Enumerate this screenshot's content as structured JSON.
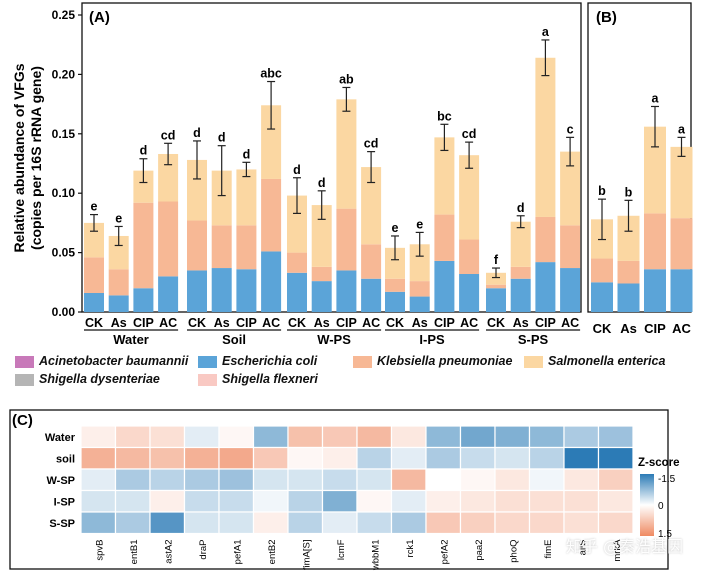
{
  "colors": {
    "acinetobacter": "#c879b9",
    "ecoli": "#5ba4d8",
    "klebsiella": "#f7b895",
    "salmonella": "#fbd7a2",
    "shigella_dys": "#b5b5b5",
    "shigella_flex": "#f9c9c3",
    "axis": "#111111",
    "heat_pos": "#2c7bb6",
    "heat_neg": "#ef8a62",
    "heat_mid": "#ffffff"
  },
  "chart_data": [
    {
      "id": "A",
      "panel_label": "(A)",
      "type": "bar",
      "stacked": true,
      "ylabel": "Relative abundance of VFGs",
      "ylabel2": "(copies per 16S rRNA gene)",
      "ylim": [
        0,
        0.25
      ],
      "yticks": [
        "0.00",
        "0.05",
        "0.10",
        "0.15",
        "0.20",
        "0.25"
      ],
      "groups": [
        {
          "name": "Water",
          "bars": [
            {
              "label": "CK",
              "letter": "e",
              "error": 0.007,
              "ecoli": 0.016,
              "klebsiella": 0.03,
              "salmonella": 0.029
            },
            {
              "label": "As",
              "letter": "e",
              "error": 0.008,
              "ecoli": 0.014,
              "klebsiella": 0.022,
              "salmonella": 0.028
            },
            {
              "label": "CIP",
              "letter": "d",
              "error": 0.01,
              "ecoli": 0.02,
              "klebsiella": 0.072,
              "salmonella": 0.027
            },
            {
              "label": "AC",
              "letter": "cd",
              "error": 0.009,
              "ecoli": 0.03,
              "klebsiella": 0.063,
              "salmonella": 0.04
            }
          ]
        },
        {
          "name": "Soil",
          "bars": [
            {
              "label": "CK",
              "letter": "d",
              "error": 0.016,
              "ecoli": 0.035,
              "klebsiella": 0.042,
              "salmonella": 0.051
            },
            {
              "label": "As",
              "letter": "d",
              "error": 0.021,
              "ecoli": 0.037,
              "klebsiella": 0.036,
              "salmonella": 0.046
            },
            {
              "label": "CIP",
              "letter": "d",
              "error": 0.006,
              "ecoli": 0.036,
              "klebsiella": 0.037,
              "salmonella": 0.047
            },
            {
              "label": "AC",
              "letter": "abc",
              "error": 0.02,
              "ecoli": 0.051,
              "klebsiella": 0.061,
              "salmonella": 0.062
            }
          ]
        },
        {
          "name": "W-PS",
          "bars": [
            {
              "label": "CK",
              "letter": "d",
              "error": 0.015,
              "ecoli": 0.033,
              "klebsiella": 0.017,
              "salmonella": 0.048
            },
            {
              "label": "As",
              "letter": "d",
              "error": 0.012,
              "ecoli": 0.026,
              "klebsiella": 0.012,
              "salmonella": 0.052
            },
            {
              "label": "CIP",
              "letter": "ab",
              "error": 0.01,
              "ecoli": 0.035,
              "klebsiella": 0.052,
              "salmonella": 0.092
            },
            {
              "label": "AC",
              "letter": "cd",
              "error": 0.013,
              "ecoli": 0.028,
              "klebsiella": 0.029,
              "salmonella": 0.065
            }
          ]
        },
        {
          "name": "I-PS",
          "bars": [
            {
              "label": "CK",
              "letter": "e",
              "error": 0.01,
              "ecoli": 0.017,
              "klebsiella": 0.011,
              "salmonella": 0.026
            },
            {
              "label": "As",
              "letter": "e",
              "error": 0.01,
              "ecoli": 0.013,
              "klebsiella": 0.013,
              "salmonella": 0.031
            },
            {
              "label": "CIP",
              "letter": "bc",
              "error": 0.011,
              "ecoli": 0.043,
              "klebsiella": 0.039,
              "salmonella": 0.065
            },
            {
              "label": "AC",
              "letter": "cd",
              "error": 0.011,
              "ecoli": 0.032,
              "klebsiella": 0.029,
              "salmonella": 0.071
            }
          ]
        },
        {
          "name": "S-PS",
          "bars": [
            {
              "label": "CK",
              "letter": "f",
              "error": 0.004,
              "ecoli": 0.02,
              "klebsiella": 0.003,
              "salmonella": 0.01
            },
            {
              "label": "As",
              "letter": "d",
              "error": 0.005,
              "ecoli": 0.028,
              "klebsiella": 0.01,
              "salmonella": 0.038
            },
            {
              "label": "CIP",
              "letter": "a",
              "error": 0.015,
              "ecoli": 0.042,
              "klebsiella": 0.038,
              "salmonella": 0.134
            },
            {
              "label": "AC",
              "letter": "c",
              "error": 0.012,
              "ecoli": 0.037,
              "klebsiella": 0.036,
              "salmonella": 0.062
            }
          ]
        }
      ]
    },
    {
      "id": "B",
      "panel_label": "(B)",
      "type": "bar",
      "stacked": true,
      "ylim": [
        0,
        0.25
      ],
      "bars": [
        {
          "label": "CK",
          "letter": "b",
          "error": 0.017,
          "ecoli": 0.025,
          "klebsiella": 0.02,
          "salmonella": 0.033
        },
        {
          "label": "As",
          "letter": "b",
          "error": 0.013,
          "ecoli": 0.024,
          "klebsiella": 0.019,
          "salmonella": 0.038
        },
        {
          "label": "CIP",
          "letter": "a",
          "error": 0.017,
          "ecoli": 0.036,
          "klebsiella": 0.047,
          "salmonella": 0.073
        },
        {
          "label": "AC",
          "letter": "a",
          "error": 0.008,
          "ecoli": 0.036,
          "klebsiella": 0.043,
          "salmonella": 0.06
        }
      ]
    },
    {
      "id": "C",
      "panel_label": "(C)",
      "type": "heatmap",
      "rows": [
        "Water",
        "soil",
        "W-SP",
        "I-SP",
        "S-SP"
      ],
      "columns": [
        "spvB",
        "entB1",
        "astA2",
        "draP",
        "pefA1",
        "entB2",
        "fimA[S]",
        "lcmF",
        "wbbM1",
        "rck1",
        "pefA2",
        "paa2",
        "phoQ",
        "fimE",
        "allS",
        "mrkA"
      ],
      "values": [
        [
          -0.2,
          -0.5,
          -0.4,
          0.2,
          -0.1,
          0.8,
          -0.8,
          -0.7,
          -0.9,
          -0.3,
          0.8,
          1.0,
          0.9,
          0.8,
          0.6,
          0.7
        ],
        [
          -1.0,
          -0.9,
          -0.8,
          -1.0,
          -1.1,
          -0.7,
          -0.1,
          -0.2,
          0.5,
          0.2,
          0.6,
          0.4,
          0.3,
          0.5,
          1.5,
          1.5
        ],
        [
          0.2,
          0.6,
          0.5,
          0.6,
          0.7,
          0.3,
          0.3,
          0.4,
          0.3,
          -0.9,
          0.0,
          -0.1,
          -0.3,
          0.1,
          -0.3,
          -0.6
        ],
        [
          0.3,
          0.3,
          -0.2,
          0.4,
          0.4,
          0.1,
          0.5,
          0.9,
          -0.1,
          0.2,
          -0.2,
          -0.3,
          -0.4,
          -0.4,
          -0.4,
          -0.3
        ],
        [
          0.8,
          0.6,
          1.2,
          0.3,
          0.3,
          -0.2,
          0.5,
          0.2,
          0.4,
          0.6,
          -0.7,
          -0.6,
          -0.5,
          -0.5,
          -0.4,
          -0.5
        ]
      ],
      "colorbar_title": "Z-score",
      "colorbar_ticks": [
        "-1.5",
        "0",
        "1.5"
      ]
    }
  ],
  "legend": [
    {
      "key": "acinetobacter",
      "label": "Acinetobacter baumannii"
    },
    {
      "key": "ecoli",
      "label": "Escherichia coli"
    },
    {
      "key": "klebsiella",
      "label": "Klebsiella pneumoniae"
    },
    {
      "key": "salmonella",
      "label": "Salmonella enterica"
    },
    {
      "key": "shigella_dys",
      "label": "Shigella dysenteriae"
    },
    {
      "key": "shigella_flex",
      "label": "Shigella flexneri"
    }
  ],
  "watermark": "知乎 @秦浩基因"
}
